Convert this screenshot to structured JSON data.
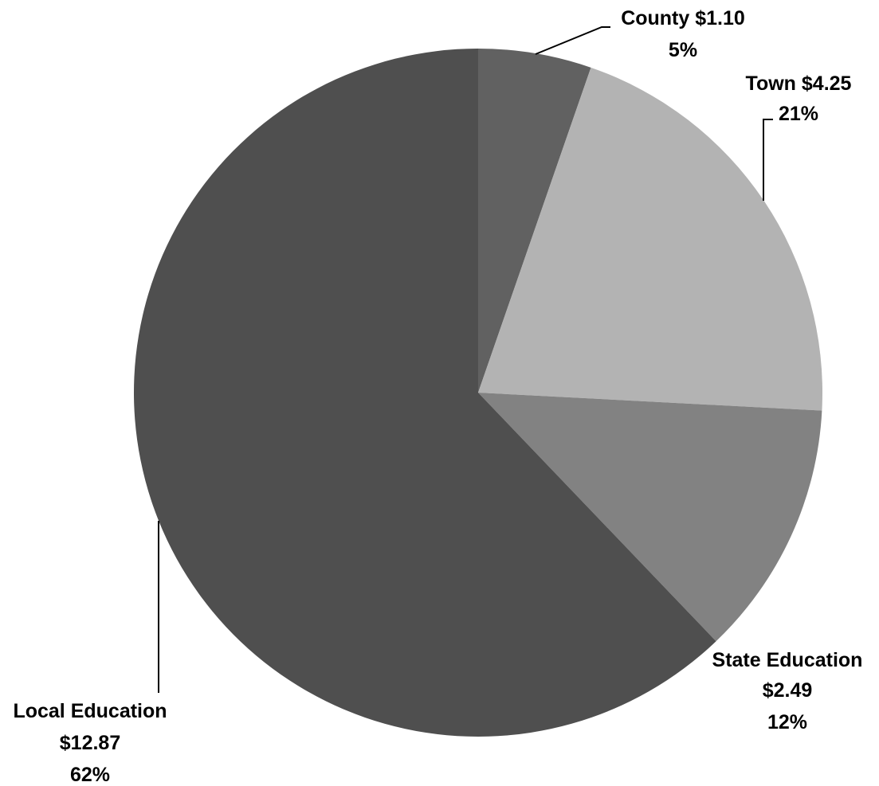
{
  "chart_data": {
    "type": "pie",
    "slices": [
      {
        "name": "County",
        "value": 1.1,
        "value_text": "$1.10",
        "percent_text": "5%",
        "color": "#616161"
      },
      {
        "name": "Town",
        "value": 4.25,
        "value_text": "$4.25",
        "percent_text": "21%",
        "color": "#b3b3b3"
      },
      {
        "name": "State Education",
        "value": 2.49,
        "value_text": "$2.49",
        "percent_text": "12%",
        "color": "#828282"
      },
      {
        "name": "Local Education",
        "value": 12.87,
        "value_text": "$12.87",
        "percent_text": "62%",
        "color": "#4f4f4f"
      }
    ],
    "start_angle_deg": 0,
    "direction": "clockwise",
    "legend": "none"
  }
}
